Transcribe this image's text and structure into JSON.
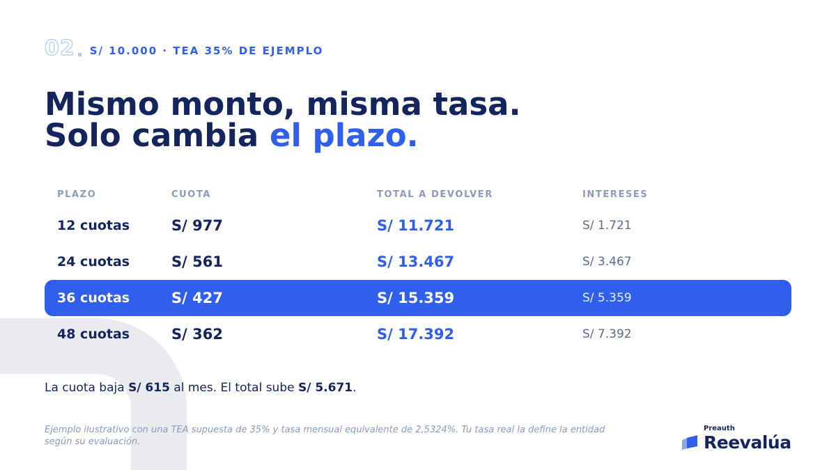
{
  "eyebrow": {
    "number": "02",
    "text": "S/ 10.000 · TEA 35% DE EJEMPLO"
  },
  "title": {
    "line1": "Mismo monto, misma tasa.",
    "line2_plain": "Solo cambia ",
    "line2_accent": "el plazo."
  },
  "table": {
    "headers": [
      "PLAZO",
      "CUOTA",
      "TOTAL A DEVOLVER",
      "INTERESES"
    ],
    "rows": [
      {
        "plazo": "12 cuotas",
        "cuota": "S/ 977",
        "total": "S/ 11.721",
        "intereses": "S/ 1.721"
      },
      {
        "plazo": "24 cuotas",
        "cuota": "S/ 561",
        "total": "S/ 13.467",
        "intereses": "S/ 3.467"
      },
      {
        "plazo": "36 cuotas",
        "cuota": "S/ 427",
        "total": "S/ 15.359",
        "intereses": "S/ 5.359",
        "highlighted": true
      },
      {
        "plazo": "48 cuotas",
        "cuota": "S/ 362",
        "total": "S/ 17.392",
        "intereses": "S/ 7.392"
      }
    ]
  },
  "summary": {
    "part1": "La cuota baja ",
    "bold1": "S/ 615",
    "part2": " al mes. El total sube ",
    "bold2": "S/ 5.671",
    "part3": "."
  },
  "footnote": "Ejemplo ilustrativo con una TEA supuesta de 35% y tasa mensual equivalente de 2,5324%. Tu tasa real la define la entidad según su evaluación.",
  "brand": {
    "tagline": "Preauth",
    "name": "Reevalúa"
  },
  "colors": {
    "navy": "#14245c",
    "accent": "#2f5fec",
    "muted": "#8c9bbd",
    "highlight_row": "#2f5fec",
    "bg_shape": "#e9ebef"
  }
}
